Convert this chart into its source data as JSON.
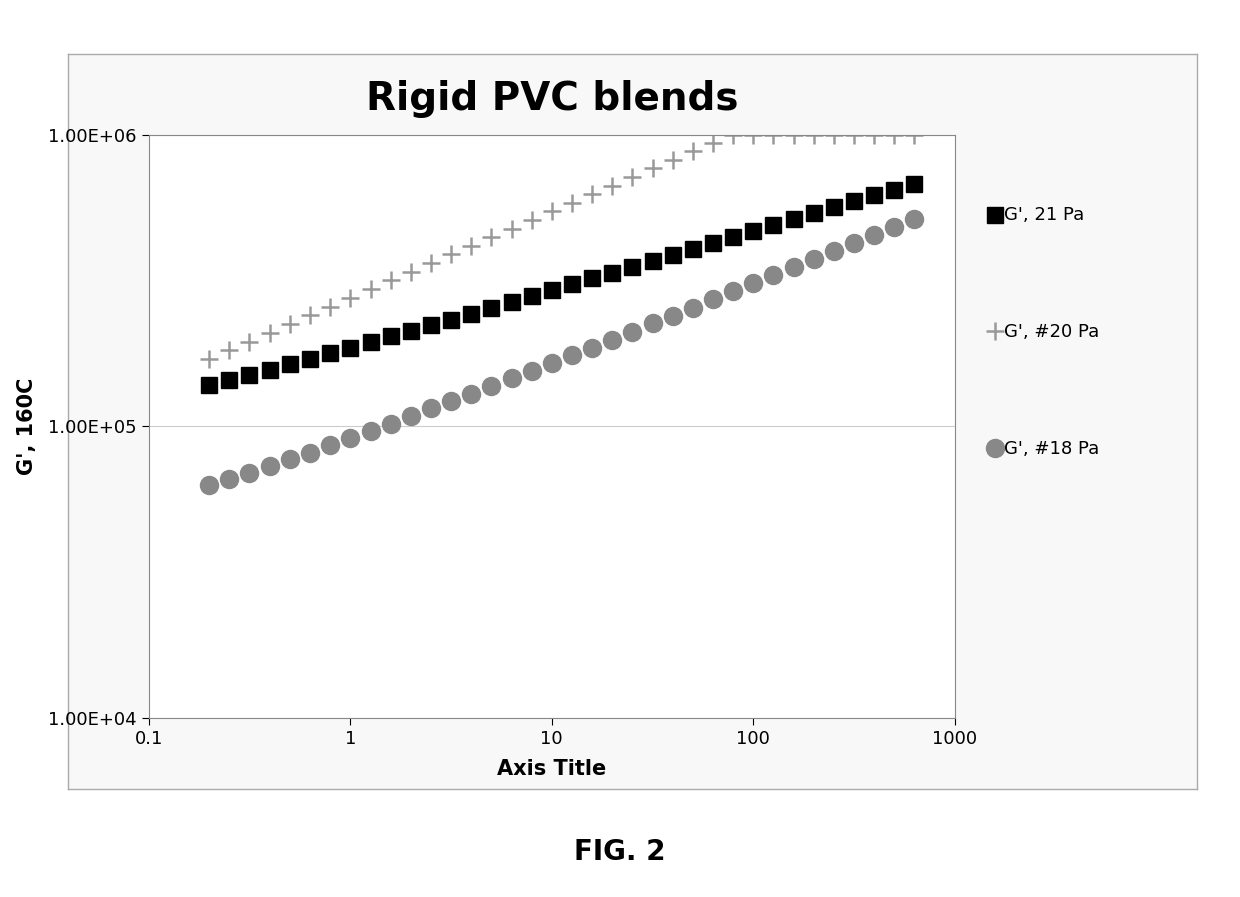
{
  "title": "Rigid PVC blends",
  "xlabel": "Axis Title",
  "ylabel": "G', 160C",
  "title_fontsize": 28,
  "axis_label_fontsize": 15,
  "tick_fontsize": 13,
  "fig_caption": "FIG. 2",
  "xlim": [
    0.1,
    1000
  ],
  "ylim": [
    10000.0,
    1000000.0
  ],
  "series": [
    {
      "label": "G', 21 Pa",
      "color": "#000000",
      "marker": "s",
      "markersize": 11,
      "markeredgewidth": 1.0,
      "x": [
        0.2,
        0.251,
        0.316,
        0.398,
        0.501,
        0.631,
        0.794,
        1.0,
        1.26,
        1.585,
        2.0,
        2.512,
        3.162,
        3.981,
        5.012,
        6.31,
        7.943,
        10.0,
        12.59,
        15.85,
        19.95,
        25.12,
        31.62,
        39.81,
        50.12,
        63.1,
        79.43,
        100.0,
        125.9,
        158.5,
        199.5,
        251.2,
        316.2,
        398.1,
        501.2,
        630.9
      ],
      "y": [
        138000.0,
        144000.0,
        150000.0,
        156000.0,
        163000.0,
        170000.0,
        178000.0,
        186000.0,
        194000.0,
        203000.0,
        212000.0,
        222000.0,
        232000.0,
        243000.0,
        254000.0,
        266000.0,
        279000.0,
        292000.0,
        306000.0,
        321000.0,
        336000.0,
        352000.0,
        369000.0,
        387000.0,
        405000.0,
        425000.0,
        445000.0,
        467000.0,
        489000.0,
        512000.0,
        537000.0,
        563000.0,
        590000.0,
        618000.0,
        647000.0,
        678000.0
      ]
    },
    {
      "label": "G', #20 Pa",
      "color": "#999999",
      "marker": "+",
      "markersize": 13,
      "markeredgewidth": 1.8,
      "x": [
        0.2,
        0.251,
        0.316,
        0.398,
        0.501,
        0.631,
        0.794,
        1.0,
        1.26,
        1.585,
        2.0,
        2.512,
        3.162,
        3.981,
        5.012,
        6.31,
        7.943,
        10.0,
        12.59,
        15.85,
        19.95,
        25.12,
        31.62,
        39.81,
        50.12,
        63.1,
        79.43,
        100.0,
        125.9,
        158.5,
        199.5,
        251.2,
        316.2,
        398.1,
        501.2,
        630.9
      ],
      "y": [
        170000.0,
        182000.0,
        195000.0,
        209000.0,
        224000.0,
        240000.0,
        257000.0,
        275000.0,
        295000.0,
        316000.0,
        338000.0,
        362000.0,
        388000.0,
        415000.0,
        444000.0,
        476000.0,
        509000.0,
        545000.0,
        583000.0,
        624000.0,
        668000.0,
        715000.0,
        765000.0,
        819000.0,
        876000.0,
        937000.0,
        1000000.0,
        1000000.0,
        1000000.0,
        1000000.0,
        1000000.0,
        1000000.0,
        1000000.0,
        1000000.0,
        1000000.0,
        1000000.0
      ]
    },
    {
      "label": "G', #18 Pa",
      "color": "#888888",
      "marker": "o",
      "markersize": 13,
      "markeredgewidth": 1.0,
      "x": [
        0.2,
        0.251,
        0.316,
        0.398,
        0.501,
        0.631,
        0.794,
        1.0,
        1.26,
        1.585,
        2.0,
        2.512,
        3.162,
        3.981,
        5.012,
        6.31,
        7.943,
        10.0,
        12.59,
        15.85,
        19.95,
        25.12,
        31.62,
        39.81,
        50.12,
        63.1,
        79.43,
        100.0,
        125.9,
        158.5,
        199.5,
        251.2,
        316.2,
        398.1,
        501.2,
        630.9
      ],
      "y": [
        63000.0,
        66000.0,
        69000.0,
        73000.0,
        77000.0,
        81000.0,
        86000.0,
        91000.0,
        96000.0,
        102000.0,
        108000.0,
        115000.0,
        122000.0,
        129000.0,
        137000.0,
        146000.0,
        155000.0,
        165000.0,
        175000.0,
        186000.0,
        198000.0,
        211000.0,
        225000.0,
        239000.0,
        255000.0,
        272000.0,
        290000.0,
        309000.0,
        329000.0,
        351000.0,
        374000.0,
        399000.0,
        425000.0,
        453000.0,
        483000.0,
        515000.0
      ]
    }
  ],
  "background_color": "#ffffff",
  "plot_bg_color": "#ffffff",
  "outer_border_color": "#aaaaaa",
  "axis_border_color": "#888888",
  "grid_color": "#cccccc"
}
